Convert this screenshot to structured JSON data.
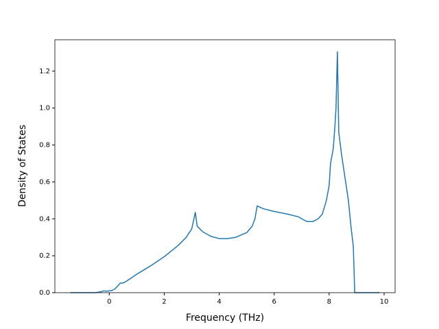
{
  "chart_data": {
    "type": "line",
    "x_label": "Frequency (THz)",
    "y_label": "Density of States",
    "color": "#1f77b4",
    "x": [
      -1.42,
      -0.5,
      -0.3,
      -0.2,
      -0.1,
      0.1,
      0.2,
      0.3,
      0.4,
      0.5,
      0.6,
      0.8,
      1.0,
      1.5,
      2.0,
      2.5,
      2.8,
      3.0,
      3.13,
      3.2,
      3.4,
      3.7,
      4.0,
      4.3,
      4.6,
      5.0,
      5.2,
      5.3,
      5.38,
      5.6,
      6.0,
      6.5,
      6.9,
      7.0,
      7.2,
      7.4,
      7.6,
      7.75,
      7.9,
      8.0,
      8.05,
      8.15,
      8.2,
      8.25,
      8.3,
      8.35,
      8.45,
      8.55,
      8.7,
      8.8,
      8.88,
      8.93,
      9.84
    ],
    "values": [
      0,
      0,
      0.005,
      0.01,
      0.008,
      0.012,
      0.02,
      0.035,
      0.052,
      0.052,
      0.06,
      0.08,
      0.1,
      0.145,
      0.195,
      0.255,
      0.3,
      0.345,
      0.435,
      0.36,
      0.33,
      0.305,
      0.293,
      0.293,
      0.3,
      0.325,
      0.36,
      0.4,
      0.47,
      0.455,
      0.44,
      0.425,
      0.41,
      0.4,
      0.385,
      0.385,
      0.4,
      0.425,
      0.5,
      0.58,
      0.7,
      0.78,
      0.88,
      1.0,
      1.305,
      0.87,
      0.75,
      0.65,
      0.5,
      0.35,
      0.25,
      0,
      0
    ],
    "xlim": [
      -1.98,
      10.4
    ],
    "ylim": [
      0,
      1.37
    ],
    "xticks": [
      0,
      2,
      4,
      6,
      8,
      10
    ],
    "yticks": [
      {
        "value": 0,
        "label": "0.0"
      },
      {
        "value": 0.2,
        "label": "0.2"
      },
      {
        "value": 0.4,
        "label": "0.4"
      },
      {
        "value": 0.6,
        "label": "0.6"
      },
      {
        "value": 0.8,
        "label": "0.8"
      },
      {
        "value": 1.0,
        "label": "1.0"
      },
      {
        "value": 1.2,
        "label": "1.2"
      }
    ]
  }
}
